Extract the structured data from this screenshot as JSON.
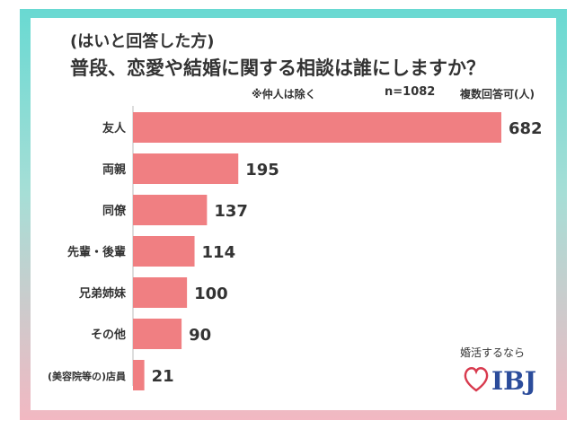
{
  "header": {
    "subtitle": "(はいと回答した方)",
    "title": "普段、恋愛や結婚に関する相談は誰にしますか？",
    "note": "※仲人は除く",
    "n_label": "n=1082",
    "unit_label": "複数回答可(人)"
  },
  "brand": {
    "tagline": "婚活するなら",
    "logo_text": "IBJ",
    "logo_color": "#2b4c9b",
    "heart_color": "#d83a4e"
  },
  "chart_data": {
    "type": "bar",
    "orientation": "horizontal",
    "categories": [
      "友人",
      "両親",
      "同僚",
      "先輩・後輩",
      "兄弟姉妹",
      "その他",
      "(美容院等の)店員"
    ],
    "values": [
      682,
      195,
      137,
      114,
      100,
      90,
      21
    ],
    "bar_color": "#f07f82",
    "xlim": [
      0,
      682
    ],
    "grid": false
  }
}
